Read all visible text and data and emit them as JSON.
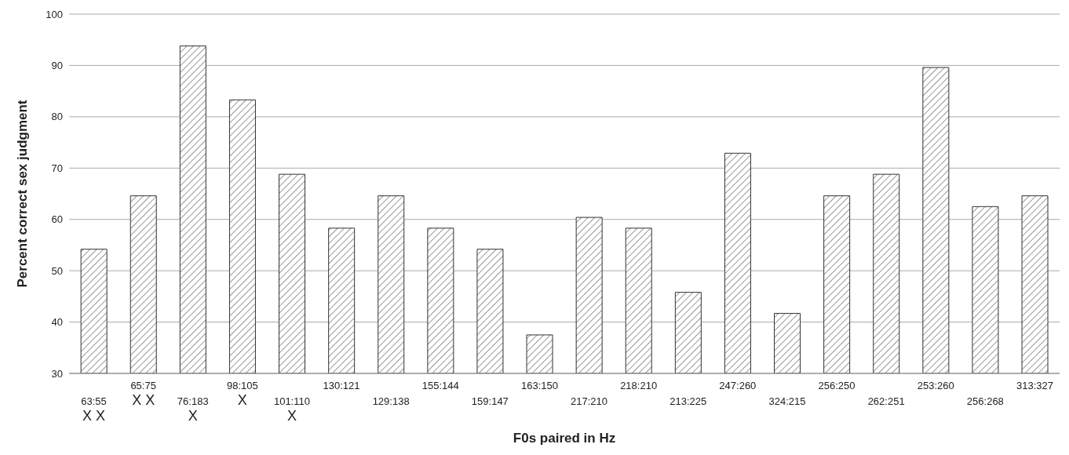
{
  "chart_data": {
    "type": "bar",
    "xlabel": "F0s paired in Hz",
    "ylabel": "Percent correct sex judgment",
    "categories": [
      "63:55\nX X",
      "65:75\nX X",
      "76:183\nX",
      "98:105\nX",
      "101:110\nX",
      "130:121",
      "129:138",
      "155:144",
      "159:147",
      "163:150",
      "217:210",
      "218:210",
      "213:225",
      "247:260",
      "324:215",
      "256:250",
      "262:251",
      "253:260",
      "256:268",
      "313:327"
    ],
    "values": [
      54.2,
      64.6,
      93.8,
      83.3,
      68.8,
      58.3,
      64.6,
      58.3,
      54.2,
      37.5,
      60.4,
      58.3,
      45.8,
      72.9,
      41.7,
      64.6,
      68.8,
      89.6,
      62.5,
      64.6
    ],
    "color": "#333333",
    "ylim": [
      30,
      100
    ],
    "yticks": [
      30,
      40,
      50,
      60,
      70,
      80,
      90,
      100
    ],
    "grid": "y"
  }
}
